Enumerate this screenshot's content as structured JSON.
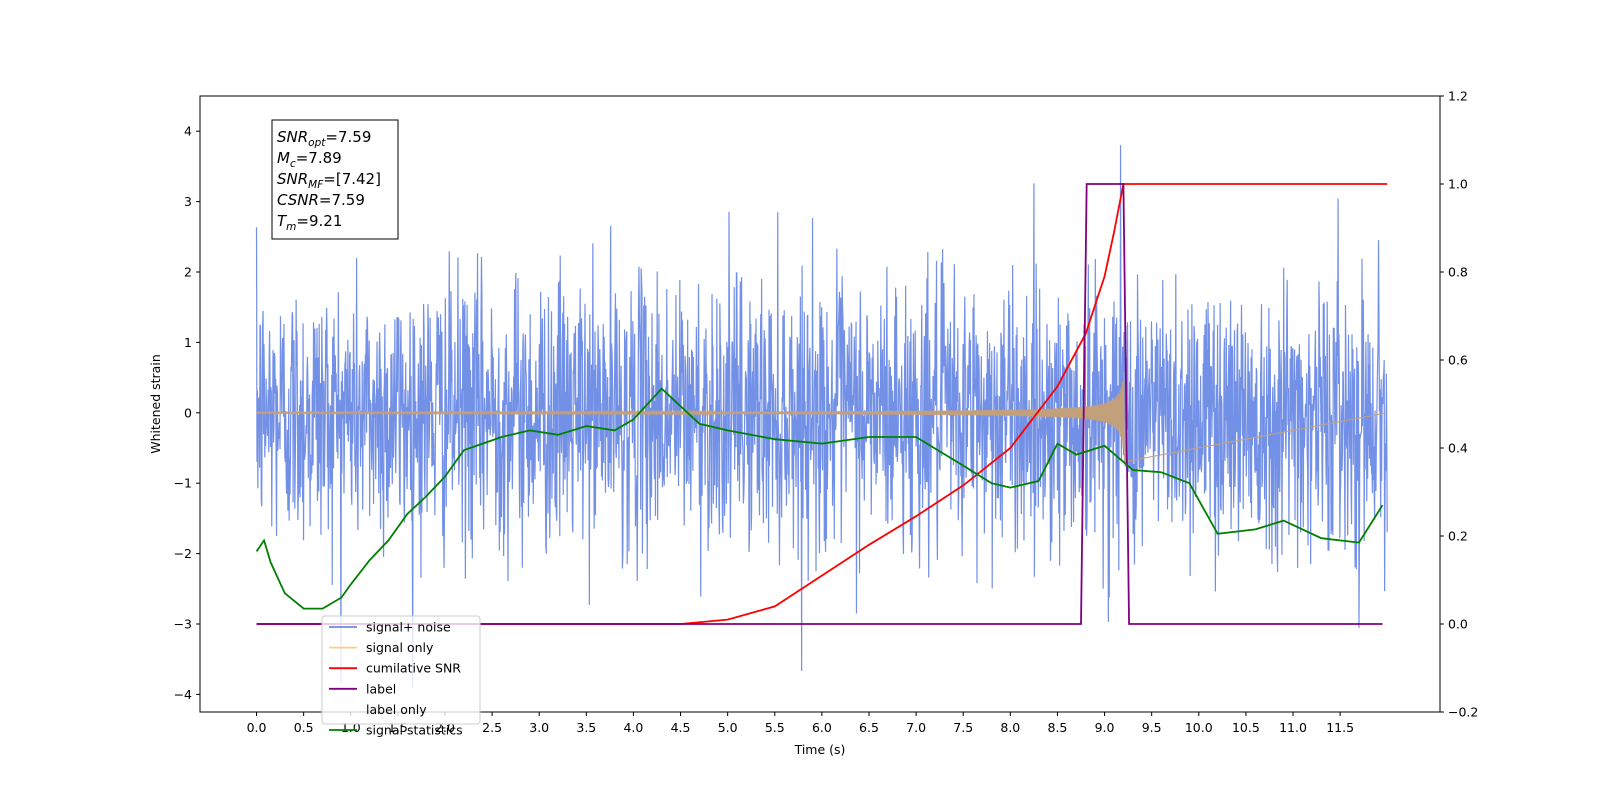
{
  "chart_data": {
    "type": "line",
    "xlabel": "Time (s)",
    "ylabel": "Whitened strain",
    "xlim": [
      -0.6,
      12.56
    ],
    "ylim": [
      -4.25,
      4.5
    ],
    "y2lim": [
      -0.2,
      1.2
    ],
    "x_ticks": [
      "0.0",
      "0.5",
      "1.0",
      "1.5",
      "2.0",
      "2.5",
      "3.0",
      "3.5",
      "4.0",
      "4.5",
      "5.0",
      "5.5",
      "6.0",
      "6.5",
      "7.0",
      "7.5",
      "8.0",
      "8.5",
      "9.0",
      "9.5",
      "10.0",
      "10.5",
      "11.0",
      "11.5"
    ],
    "y_ticks": [
      "4",
      "3",
      "2",
      "1",
      "0",
      "−1",
      "−2",
      "−3",
      "−4"
    ],
    "y2_ticks": [
      "1.2",
      "1.0",
      "0.8",
      "0.6",
      "0.4",
      "0.2",
      "0.0",
      "−0.2"
    ],
    "grid": false,
    "legend_position": "lower-left",
    "annotation": [
      {
        "base": "SNR",
        "sub": "opt",
        "value": "=7.59"
      },
      {
        "base": "M",
        "sub": "c",
        "value": "=7.89"
      },
      {
        "base": "SNR",
        "sub": "MF",
        "value": "=[7.42]"
      },
      {
        "base": "CSNR",
        "sub": "",
        "value": "=7.59"
      },
      {
        "base": "T",
        "sub": "m",
        "value": "=9.21"
      }
    ],
    "series": [
      {
        "name": "signal+ noise",
        "color": "#6b8ae6",
        "axis": "left",
        "kind": "noise",
        "x_range": [
          0.0,
          12.0
        ],
        "std": 0.95,
        "peak_x": 9.17,
        "peak_y": 3.8
      },
      {
        "name": "signal only",
        "color": "#ffcc80",
        "axis": "left",
        "kind": "chirp",
        "x_range": [
          0.0,
          9.21
        ],
        "peak_amplitude": 0.7
      },
      {
        "name": "cumilative SNR",
        "color": "#ff0000",
        "axis": "right",
        "x": [
          0.0,
          4.5,
          5.0,
          5.5,
          6.0,
          6.5,
          7.0,
          7.5,
          8.0,
          8.5,
          8.8,
          9.0,
          9.1,
          9.2,
          12.0
        ],
        "values": [
          0.0,
          0.0,
          0.01,
          0.04,
          0.11,
          0.18,
          0.245,
          0.315,
          0.4,
          0.54,
          0.66,
          0.79,
          0.89,
          1.0,
          1.0
        ]
      },
      {
        "name": "label",
        "color": "#800080",
        "axis": "right",
        "x": [
          0.0,
          8.75,
          8.81,
          9.2,
          9.26,
          11.95
        ],
        "values": [
          0.0,
          0.0,
          1.0,
          1.0,
          0.0,
          0.0
        ]
      },
      {
        "name": "label only",
        "color": "#ffffff",
        "axis": "right",
        "x": [],
        "values": []
      },
      {
        "name": "signal statistics",
        "color": "#008000",
        "axis": "right",
        "x": [
          0.0,
          0.08,
          0.15,
          0.3,
          0.5,
          0.7,
          0.9,
          1.0,
          1.2,
          1.4,
          1.6,
          1.8,
          2.0,
          2.2,
          2.4,
          2.6,
          2.9,
          3.2,
          3.5,
          3.8,
          4.0,
          4.3,
          4.45,
          4.7,
          5.0,
          5.5,
          6.0,
          6.5,
          7.0,
          7.5,
          7.8,
          8.0,
          8.3,
          8.5,
          8.7,
          9.0,
          9.3,
          9.6,
          9.9,
          10.2,
          10.6,
          10.9,
          11.3,
          11.7,
          11.95
        ],
        "values": [
          0.165,
          0.19,
          0.14,
          0.07,
          0.035,
          0.035,
          0.06,
          0.09,
          0.145,
          0.19,
          0.25,
          0.29,
          0.335,
          0.395,
          0.41,
          0.425,
          0.44,
          0.43,
          0.45,
          0.44,
          0.465,
          0.535,
          0.505,
          0.455,
          0.44,
          0.42,
          0.41,
          0.425,
          0.425,
          0.36,
          0.32,
          0.31,
          0.325,
          0.41,
          0.385,
          0.405,
          0.35,
          0.345,
          0.32,
          0.205,
          0.215,
          0.235,
          0.195,
          0.185,
          0.27
        ]
      }
    ]
  }
}
